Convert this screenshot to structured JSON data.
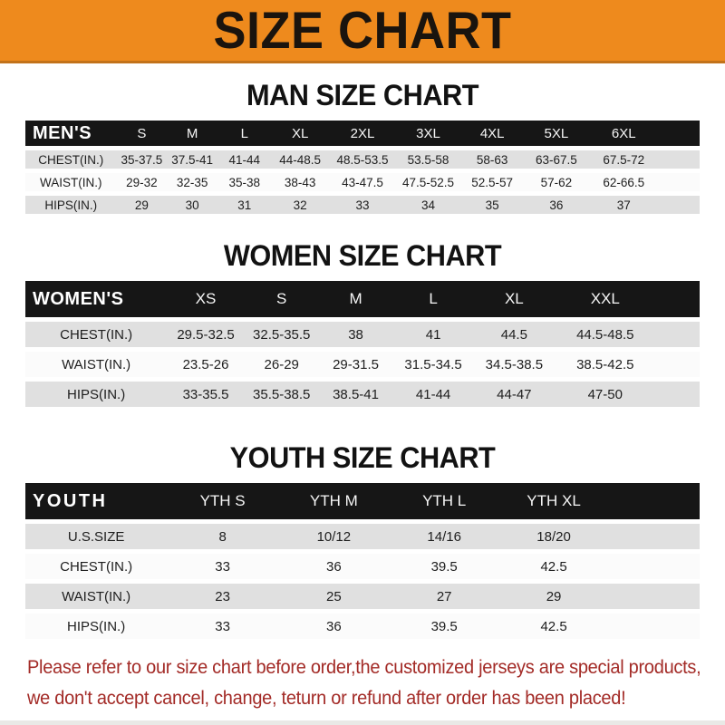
{
  "banner": {
    "title": "SIZE CHART",
    "bg_color": "#EE8A1D",
    "text_color": "#1A140E"
  },
  "colors": {
    "table_header_bg": "#161616",
    "row_stripe_gray": "#E0E0E0",
    "row_stripe_white": "#FBFBFB",
    "disclaimer_red": "#A32B27"
  },
  "tables": [
    {
      "id": "men",
      "section_title": "MAN SIZE CHART",
      "header": {
        "label": "MEN'S",
        "cols": [
          "S",
          "M",
          "L",
          "XL",
          "2XL",
          "3XL",
          "4XL",
          "5XL",
          "6XL"
        ]
      },
      "rows": [
        {
          "label": "CHEST(IN.)",
          "values": [
            "35-37.5",
            "37.5-41",
            "41-44",
            "44-48.5",
            "48.5-53.5",
            "53.5-58",
            "58-63",
            "63-67.5",
            "67.5-72"
          ]
        },
        {
          "label": "WAIST(IN.)",
          "values": [
            "29-32",
            "32-35",
            "35-38",
            "38-43",
            "43-47.5",
            "47.5-52.5",
            "52.5-57",
            "57-62",
            "62-66.5"
          ]
        },
        {
          "label": "HIPS(IN.)",
          "values": [
            "29",
            "30",
            "31",
            "32",
            "33",
            "34",
            "35",
            "36",
            "37"
          ]
        }
      ]
    },
    {
      "id": "women",
      "section_title": "WOMEN SIZE CHART",
      "header": {
        "label": "WOMEN'S",
        "cols": [
          "XS",
          "S",
          "M",
          "L",
          "XL",
          "XXL"
        ]
      },
      "rows": [
        {
          "label": "CHEST(IN.)",
          "values": [
            "29.5-32.5",
            "32.5-35.5",
            "38",
            "41",
            "44.5",
            "44.5-48.5"
          ]
        },
        {
          "label": "WAIST(IN.)",
          "values": [
            "23.5-26",
            "26-29",
            "29-31.5",
            "31.5-34.5",
            "34.5-38.5",
            "38.5-42.5"
          ]
        },
        {
          "label": "HIPS(IN.)",
          "values": [
            "33-35.5",
            "35.5-38.5",
            "38.5-41",
            "41-44",
            "44-47",
            "47-50"
          ]
        }
      ]
    },
    {
      "id": "youth",
      "section_title": "YOUTH SIZE CHART",
      "header": {
        "label": "YOUTH",
        "cols": [
          "YTH S",
          "YTH M",
          "YTH L",
          "YTH XL"
        ]
      },
      "rows": [
        {
          "label": "U.S.SIZE",
          "values": [
            "8",
            "10/12",
            "14/16",
            "18/20"
          ]
        },
        {
          "label": "CHEST(IN.)",
          "values": [
            "33",
            "36",
            "39.5",
            "42.5"
          ]
        },
        {
          "label": "WAIST(IN.)",
          "values": [
            "23",
            "25",
            "27",
            "29"
          ]
        },
        {
          "label": "HIPS(IN.)",
          "values": [
            "33",
            "36",
            "39.5",
            "42.5"
          ]
        }
      ]
    }
  ],
  "footer": {
    "line1": "Please refer to our size chart before order,the customized jerseys are special products,",
    "line2": "we don't accept cancel, change, teturn or refund after order has been placed!"
  }
}
